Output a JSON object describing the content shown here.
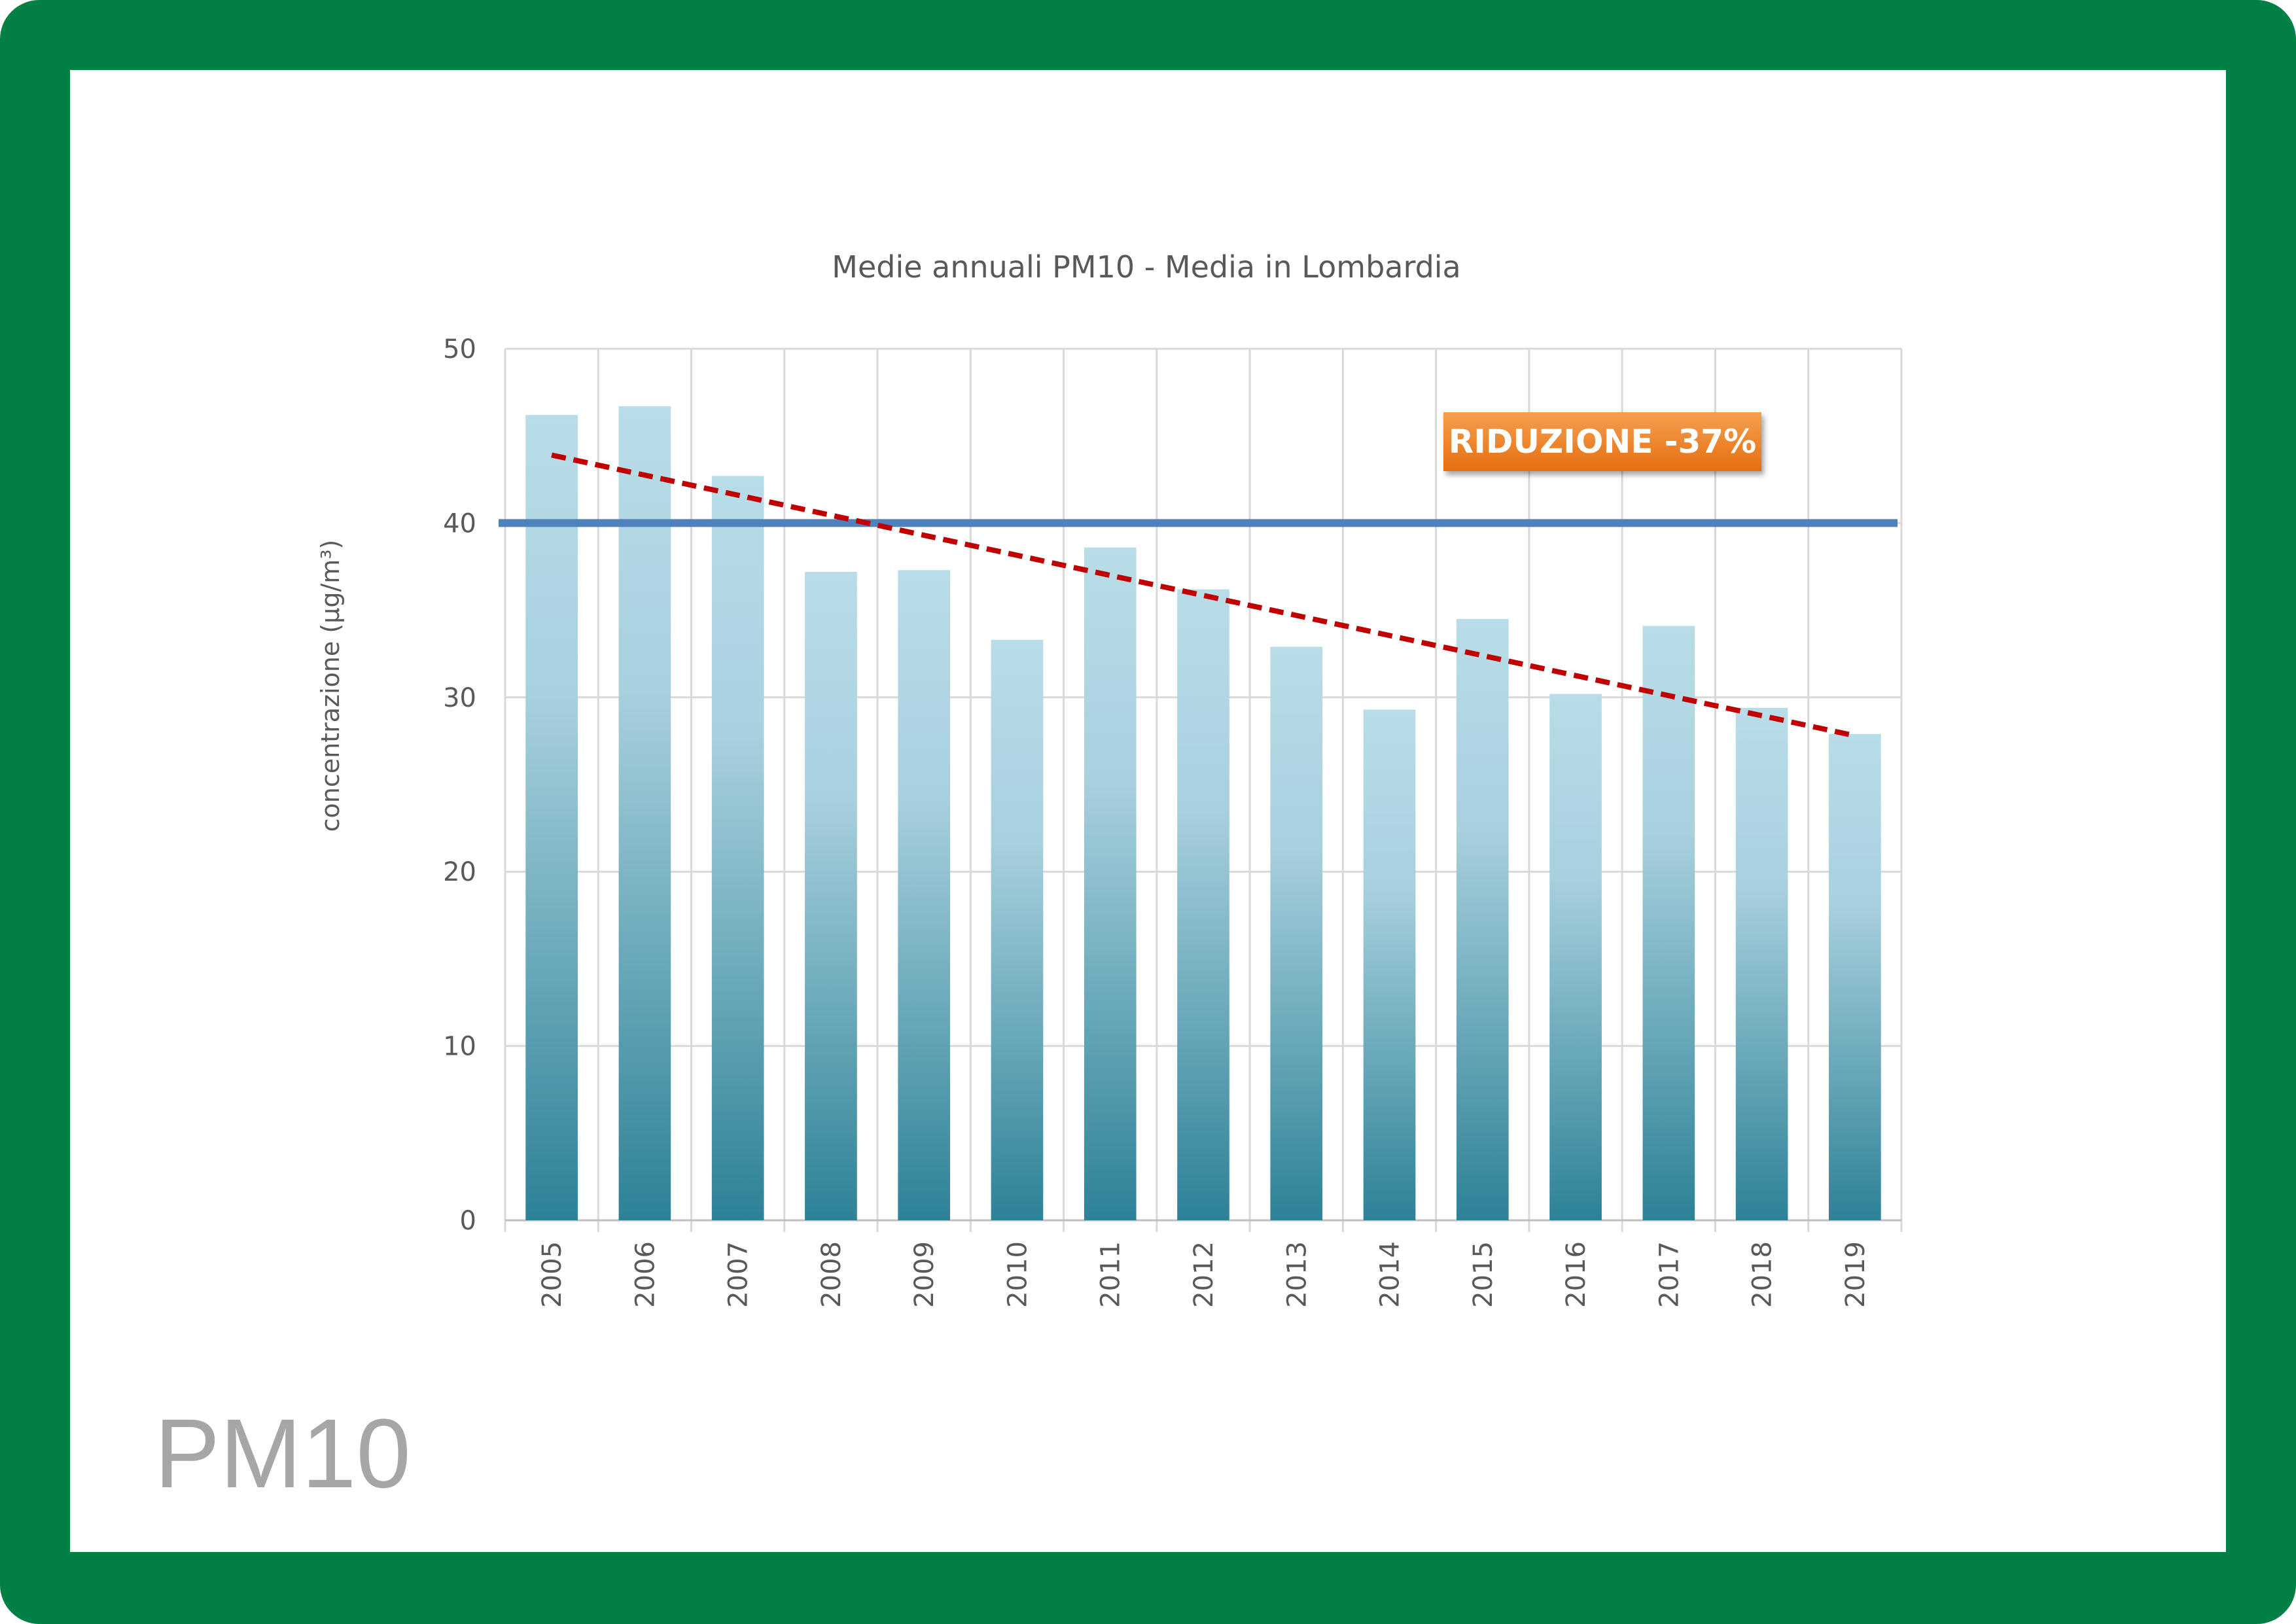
{
  "page": {
    "label": "PM10",
    "frame_color": "#008044"
  },
  "chart_data": {
    "type": "bar",
    "title": "Medie annuali PM10 - Media in Lombardia",
    "xlabel": "",
    "ylabel": "concentrazione (µg/m³)",
    "ylim": [
      0,
      50
    ],
    "yticks": [
      0,
      10,
      20,
      30,
      40,
      50
    ],
    "grid": true,
    "categories": [
      "2005",
      "2006",
      "2007",
      "2008",
      "2009",
      "2010",
      "2011",
      "2012",
      "2013",
      "2014",
      "2015",
      "2016",
      "2017",
      "2018",
      "2019"
    ],
    "values": [
      46.2,
      46.7,
      42.7,
      37.2,
      37.3,
      33.3,
      38.6,
      36.2,
      32.9,
      29.3,
      34.5,
      30.2,
      34.1,
      29.4,
      27.9
    ],
    "bar_color_top": "#b8dde8",
    "bar_color_bottom": "#2d8297",
    "limit_line": {
      "value": 40,
      "color": "#4f81bd"
    },
    "trend_line": {
      "start": 43.9,
      "end": 27.8,
      "color": "#c00000",
      "style": "dashed"
    },
    "annotation": {
      "text": "RIDUZIONE -37%",
      "color": "#f07c1f"
    }
  }
}
